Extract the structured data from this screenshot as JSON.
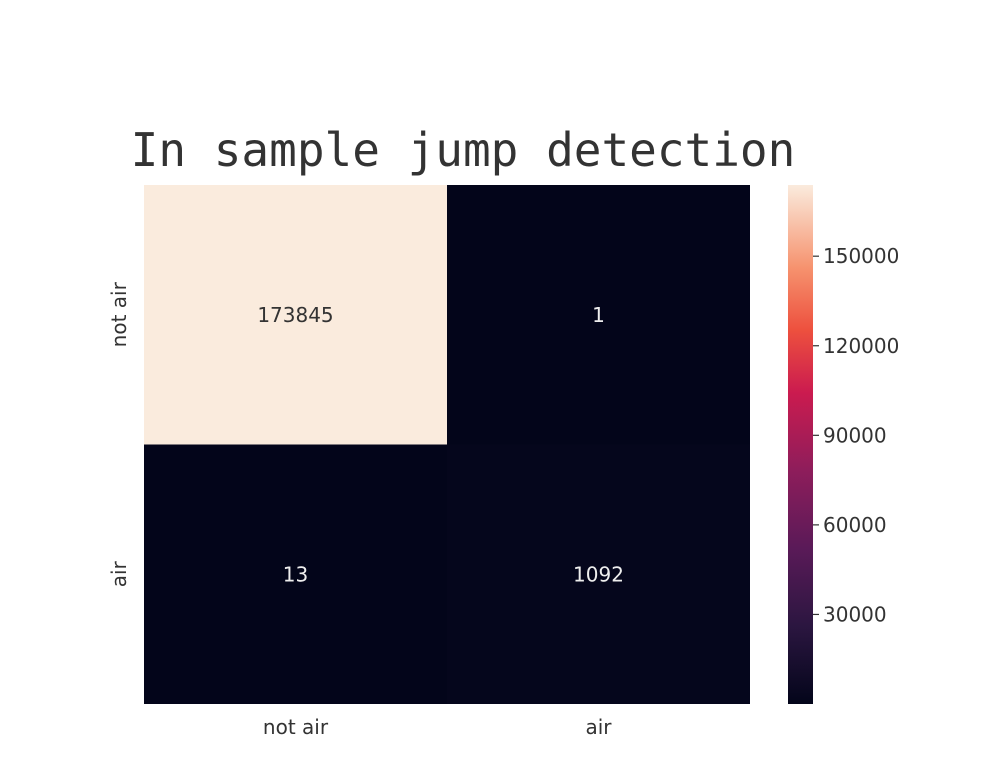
{
  "chart_data": {
    "type": "heatmap",
    "title": "In sample jump detection",
    "x_categories": [
      "not air",
      "air"
    ],
    "y_categories": [
      "not air",
      "air"
    ],
    "values": [
      [
        173845,
        1
      ],
      [
        13,
        1092
      ]
    ],
    "colorbar": {
      "range": [
        1,
        173845
      ],
      "ticks": [
        30000,
        60000,
        90000,
        120000,
        150000
      ],
      "colormap": "rocket"
    },
    "colors": {
      "low": "#03051a",
      "high": "#faebdd",
      "text_on_light": "#333333",
      "text_on_dark": "#eeeeee"
    }
  }
}
